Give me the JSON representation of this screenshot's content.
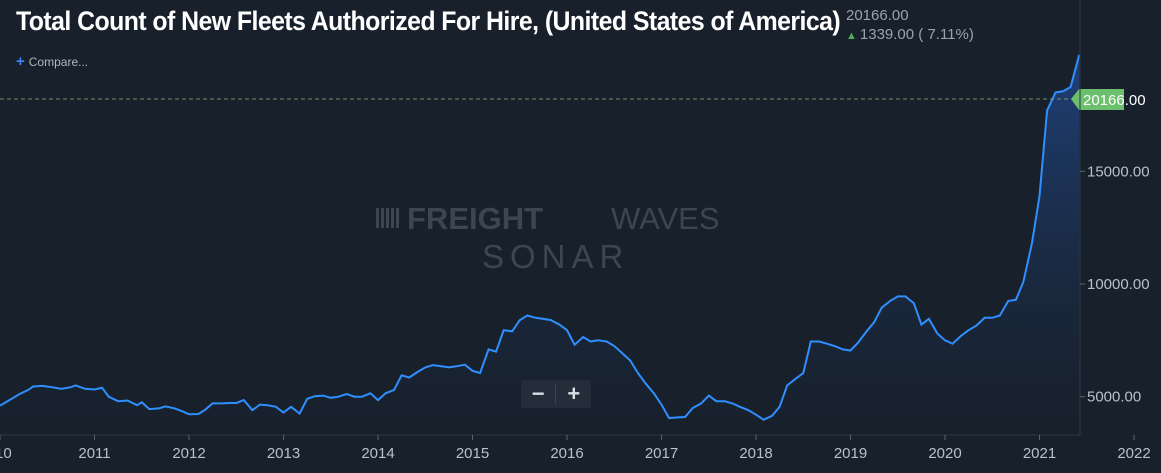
{
  "header": {
    "title": "Total Count of New Fleets Authorized For Hire, (United States of America)",
    "last_value": "20166.00",
    "change": "1339.00 ( 7.11%)",
    "compare_label": "Compare..."
  },
  "watermark": {
    "line1_bold": "FREIGHT",
    "line1_light": "WAVES",
    "line2": "SONAR"
  },
  "zoom": {
    "minus": "−",
    "plus": "+"
  },
  "colors": {
    "background": "#18202b",
    "line": "#2f8fff",
    "area_top": "#1e3d72",
    "area_bottom": "#18202b",
    "price_tag": "#6cbf6c",
    "dashed_line": "#6a9a6a"
  },
  "chart_data": {
    "type": "area",
    "title": "Total Count of New Fleets Authorized For Hire, (United States of America)",
    "xlabel": "",
    "ylabel": "",
    "x_tick_labels": [
      "10",
      "2011",
      "2012",
      "2013",
      "2014",
      "2015",
      "2016",
      "2017",
      "2018",
      "2019",
      "2020",
      "2021",
      "2022"
    ],
    "y_tick_labels": [
      "5000.00",
      "10000.00",
      "15000.00"
    ],
    "y_ticks": [
      5000,
      10000,
      15000
    ],
    "ylim": [
      3300,
      22600
    ],
    "xlim": [
      2010.0,
      2022.13
    ],
    "grid": false,
    "current_value_label": "20166.00",
    "series": [
      {
        "values": [
          [
            2010.0,
            4600
          ],
          [
            2010.1,
            4850
          ],
          [
            2010.2,
            5100
          ],
          [
            2010.3,
            5300
          ],
          [
            2010.35,
            5450
          ],
          [
            2010.45,
            5480
          ],
          [
            2010.55,
            5420
          ],
          [
            2010.65,
            5350
          ],
          [
            2010.75,
            5420
          ],
          [
            2010.8,
            5500
          ],
          [
            2010.9,
            5350
          ],
          [
            2011.0,
            5320
          ],
          [
            2011.08,
            5400
          ],
          [
            2011.15,
            5000
          ],
          [
            2011.25,
            4800
          ],
          [
            2011.35,
            4830
          ],
          [
            2011.45,
            4620
          ],
          [
            2011.5,
            4750
          ],
          [
            2011.58,
            4450
          ],
          [
            2011.68,
            4480
          ],
          [
            2011.75,
            4570
          ],
          [
            2011.85,
            4480
          ],
          [
            2011.93,
            4350
          ],
          [
            2012.0,
            4220
          ],
          [
            2012.1,
            4230
          ],
          [
            2012.17,
            4420
          ],
          [
            2012.25,
            4700
          ],
          [
            2012.35,
            4700
          ],
          [
            2012.42,
            4720
          ],
          [
            2012.5,
            4720
          ],
          [
            2012.58,
            4850
          ],
          [
            2012.67,
            4400
          ],
          [
            2012.75,
            4650
          ],
          [
            2012.83,
            4620
          ],
          [
            2012.92,
            4550
          ],
          [
            2013.0,
            4300
          ],
          [
            2013.08,
            4550
          ],
          [
            2013.17,
            4250
          ],
          [
            2013.25,
            4900
          ],
          [
            2013.33,
            5020
          ],
          [
            2013.42,
            5050
          ],
          [
            2013.5,
            4950
          ],
          [
            2013.58,
            5000
          ],
          [
            2013.67,
            5120
          ],
          [
            2013.75,
            5000
          ],
          [
            2013.83,
            5000
          ],
          [
            2013.92,
            5150
          ],
          [
            2014.0,
            4850
          ],
          [
            2014.08,
            5150
          ],
          [
            2014.17,
            5300
          ],
          [
            2014.25,
            5950
          ],
          [
            2014.33,
            5850
          ],
          [
            2014.42,
            6100
          ],
          [
            2014.5,
            6300
          ],
          [
            2014.58,
            6400
          ],
          [
            2014.67,
            6350
          ],
          [
            2014.75,
            6300
          ],
          [
            2014.83,
            6350
          ],
          [
            2014.92,
            6420
          ],
          [
            2015.0,
            6150
          ],
          [
            2015.08,
            6050
          ],
          [
            2015.17,
            7100
          ],
          [
            2015.25,
            7000
          ],
          [
            2015.33,
            7950
          ],
          [
            2015.42,
            7900
          ],
          [
            2015.5,
            8400
          ],
          [
            2015.58,
            8600
          ],
          [
            2015.67,
            8500
          ],
          [
            2015.75,
            8450
          ],
          [
            2015.83,
            8400
          ],
          [
            2015.92,
            8200
          ],
          [
            2016.0,
            7950
          ],
          [
            2016.08,
            7300
          ],
          [
            2016.17,
            7650
          ],
          [
            2016.25,
            7450
          ],
          [
            2016.33,
            7500
          ],
          [
            2016.42,
            7450
          ],
          [
            2016.5,
            7250
          ],
          [
            2016.58,
            6950
          ],
          [
            2016.67,
            6600
          ],
          [
            2016.75,
            6050
          ],
          [
            2016.83,
            5600
          ],
          [
            2016.92,
            5150
          ],
          [
            2017.0,
            4650
          ],
          [
            2017.08,
            4050
          ],
          [
            2017.17,
            4080
          ],
          [
            2017.25,
            4100
          ],
          [
            2017.33,
            4500
          ],
          [
            2017.42,
            4700
          ],
          [
            2017.5,
            5050
          ],
          [
            2017.58,
            4800
          ],
          [
            2017.67,
            4800
          ],
          [
            2017.75,
            4700
          ],
          [
            2017.83,
            4550
          ],
          [
            2017.92,
            4400
          ],
          [
            2018.0,
            4200
          ],
          [
            2018.08,
            3980
          ],
          [
            2018.17,
            4150
          ],
          [
            2018.25,
            4550
          ],
          [
            2018.33,
            5500
          ],
          [
            2018.42,
            5800
          ],
          [
            2018.5,
            6050
          ],
          [
            2018.58,
            7450
          ],
          [
            2018.67,
            7450
          ],
          [
            2018.75,
            7350
          ],
          [
            2018.83,
            7250
          ],
          [
            2018.92,
            7100
          ],
          [
            2019.0,
            7050
          ],
          [
            2019.08,
            7400
          ],
          [
            2019.17,
            7900
          ],
          [
            2019.25,
            8300
          ],
          [
            2019.33,
            8950
          ],
          [
            2019.42,
            9250
          ],
          [
            2019.5,
            9450
          ],
          [
            2019.58,
            9450
          ],
          [
            2019.67,
            9150
          ],
          [
            2019.75,
            8200
          ],
          [
            2019.83,
            8450
          ],
          [
            2019.92,
            7800
          ],
          [
            2020.0,
            7500
          ],
          [
            2020.08,
            7350
          ],
          [
            2020.17,
            7700
          ],
          [
            2020.25,
            7950
          ],
          [
            2020.33,
            8150
          ],
          [
            2020.42,
            8500
          ],
          [
            2020.5,
            8500
          ],
          [
            2020.58,
            8600
          ],
          [
            2020.67,
            9250
          ],
          [
            2020.75,
            9300
          ],
          [
            2020.83,
            10100
          ],
          [
            2020.92,
            11800
          ],
          [
            2021.0,
            13900
          ],
          [
            2021.08,
            17700
          ],
          [
            2021.17,
            18500
          ],
          [
            2021.25,
            18550
          ],
          [
            2021.33,
            18750
          ],
          [
            2021.42,
            20166
          ]
        ]
      }
    ]
  }
}
